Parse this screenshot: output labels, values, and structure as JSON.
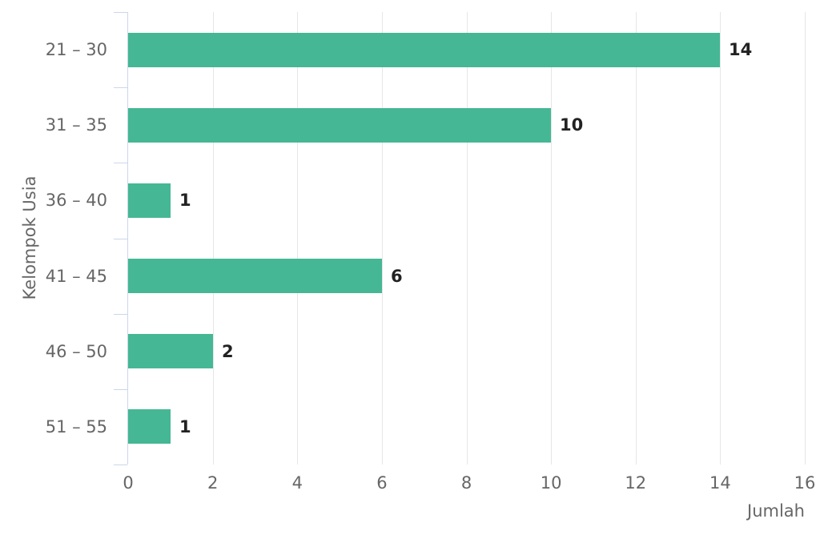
{
  "chart_data": {
    "type": "bar",
    "orientation": "horizontal",
    "title": "",
    "categories": [
      "21 – 30",
      "31 – 35",
      "36 – 40",
      "41 – 45",
      "46 – 50",
      "51 – 55"
    ],
    "values": [
      14,
      10,
      1,
      6,
      2,
      1
    ],
    "xlabel": "Jumlah",
    "ylabel": "Kelompok Usia",
    "xlim": [
      0,
      16
    ],
    "xticks": [
      0,
      2,
      4,
      6,
      8,
      10,
      12,
      14,
      16
    ],
    "grid": true,
    "legend": false,
    "colors": {
      "bar": "#45b794",
      "axis_line": "#ccd6eb",
      "gridline": "#e6e6e6",
      "tick_label": "#666666",
      "data_label": "#222222"
    }
  }
}
